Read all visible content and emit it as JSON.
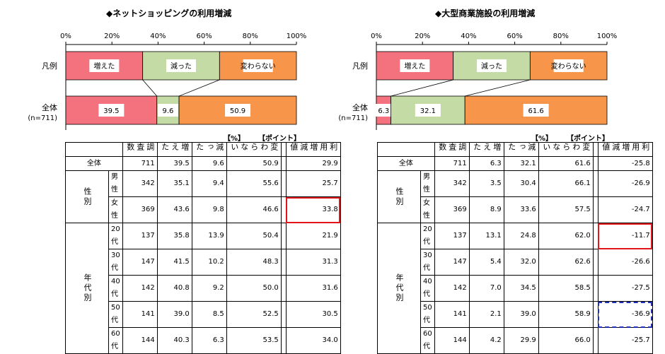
{
  "axis_ticks": [
    "0%",
    "20%",
    "40%",
    "60%",
    "80%",
    "100%"
  ],
  "row_labels": {
    "legend": "凡例",
    "total": "全体",
    "total_n": "(n=711)"
  },
  "units": {
    "pct": "【%】",
    "point": "【ポイント】"
  },
  "table_headers": [
    "調査数",
    "増えた",
    "減った",
    "変わらない",
    "利用増減値"
  ],
  "group_labels": {
    "gender": "性別",
    "age": "年代別"
  },
  "chart_data": [
    {
      "type": "bar",
      "title": "◆ネットショッピングの利用増減",
      "stacked": true,
      "orientation": "horizontal",
      "xlim": [
        0,
        100
      ],
      "legend_labels": [
        "増えた",
        "減った",
        "変わらない"
      ],
      "colors": [
        "#f4727d",
        "#c4dba5",
        "#f7954b"
      ],
      "categories": [
        "全体"
      ],
      "series": [
        {
          "name": "増えた",
          "values": [
            39.5
          ]
        },
        {
          "name": "減った",
          "values": [
            9.6
          ]
        },
        {
          "name": "変わらない",
          "values": [
            50.9
          ]
        }
      ],
      "table": {
        "rows": [
          {
            "group": "",
            "label": "全体",
            "n": "711",
            "inc": "39.5",
            "dec": "9.6",
            "same": "50.9",
            "diff": "29.9",
            "mark": ""
          },
          {
            "group": "gender",
            "label": "男性",
            "n": "342",
            "inc": "35.1",
            "dec": "9.4",
            "same": "55.6",
            "diff": "25.7",
            "mark": ""
          },
          {
            "group": "gender",
            "label": "女性",
            "n": "369",
            "inc": "43.6",
            "dec": "9.8",
            "same": "46.6",
            "diff": "33.8",
            "mark": "red"
          },
          {
            "group": "age",
            "label": "20代",
            "n": "137",
            "inc": "35.8",
            "dec": "13.9",
            "same": "50.4",
            "diff": "21.9",
            "mark": ""
          },
          {
            "group": "age",
            "label": "30代",
            "n": "147",
            "inc": "41.5",
            "dec": "10.2",
            "same": "48.3",
            "diff": "31.3",
            "mark": ""
          },
          {
            "group": "age",
            "label": "40代",
            "n": "142",
            "inc": "40.8",
            "dec": "9.2",
            "same": "50.0",
            "diff": "31.6",
            "mark": ""
          },
          {
            "group": "age",
            "label": "50代",
            "n": "141",
            "inc": "39.0",
            "dec": "8.5",
            "same": "52.5",
            "diff": "30.5",
            "mark": ""
          },
          {
            "group": "age",
            "label": "60代",
            "n": "144",
            "inc": "40.3",
            "dec": "6.3",
            "same": "53.5",
            "diff": "34.0",
            "mark": ""
          }
        ]
      }
    },
    {
      "type": "bar",
      "title": "◆大型商業施設の利用増減",
      "stacked": true,
      "orientation": "horizontal",
      "xlim": [
        0,
        100
      ],
      "legend_labels": [
        "増えた",
        "減った",
        "変わらない"
      ],
      "colors": [
        "#f4727d",
        "#c4dba5",
        "#f7954b"
      ],
      "categories": [
        "全体"
      ],
      "series": [
        {
          "name": "増えた",
          "values": [
            6.3
          ]
        },
        {
          "name": "減った",
          "values": [
            32.1
          ]
        },
        {
          "name": "変わらない",
          "values": [
            61.6
          ]
        }
      ],
      "table": {
        "rows": [
          {
            "group": "",
            "label": "全体",
            "n": "711",
            "inc": "6.3",
            "dec": "32.1",
            "same": "61.6",
            "diff": "-25.8",
            "mark": ""
          },
          {
            "group": "gender",
            "label": "男性",
            "n": "342",
            "inc": "3.5",
            "dec": "30.4",
            "same": "66.1",
            "diff": "-26.9",
            "mark": ""
          },
          {
            "group": "gender",
            "label": "女性",
            "n": "369",
            "inc": "8.9",
            "dec": "33.6",
            "same": "57.5",
            "diff": "-24.7",
            "mark": ""
          },
          {
            "group": "age",
            "label": "20代",
            "n": "137",
            "inc": "13.1",
            "dec": "24.8",
            "same": "62.0",
            "diff": "-11.7",
            "mark": "red"
          },
          {
            "group": "age",
            "label": "30代",
            "n": "147",
            "inc": "5.4",
            "dec": "32.0",
            "same": "62.6",
            "diff": "-26.6",
            "mark": ""
          },
          {
            "group": "age",
            "label": "40代",
            "n": "142",
            "inc": "7.0",
            "dec": "34.5",
            "same": "58.5",
            "diff": "-27.5",
            "mark": ""
          },
          {
            "group": "age",
            "label": "50代",
            "n": "141",
            "inc": "2.1",
            "dec": "39.0",
            "same": "58.9",
            "diff": "-36.9",
            "mark": "blue"
          },
          {
            "group": "age",
            "label": "60代",
            "n": "144",
            "inc": "4.2",
            "dec": "29.9",
            "same": "66.0",
            "diff": "-25.7",
            "mark": ""
          }
        ]
      }
    }
  ]
}
